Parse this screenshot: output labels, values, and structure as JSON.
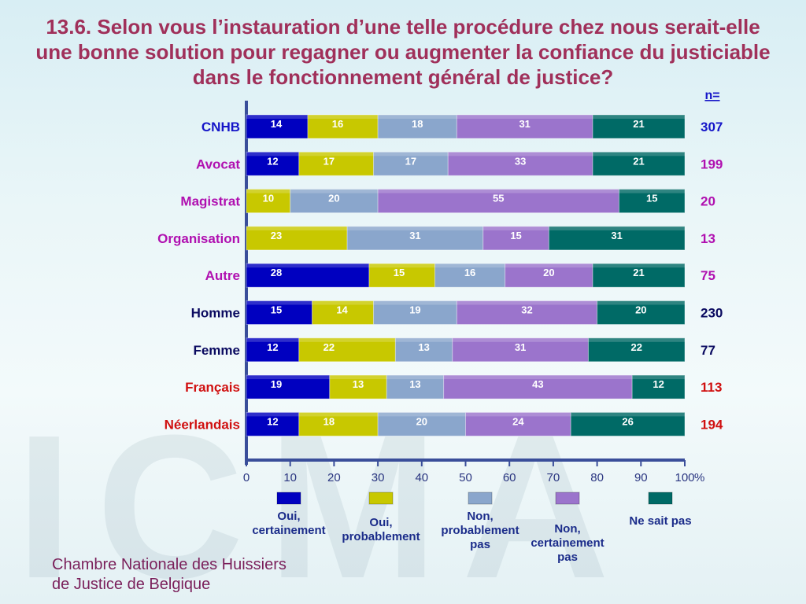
{
  "title": "13.6. Selon vous l’instauration d’une telle procédure chez nous serait-elle une bonne solution pour regagner ou augmenter la confiance du justiciable dans le fonctionnement général de justice?",
  "footer": {
    "line1": "Chambre Nationale des Huissiers",
    "line2": "de Justice de Belgique"
  },
  "watermark": "ICMA",
  "chart_data": {
    "type": "bar",
    "orientation": "horizontal",
    "stacked": true,
    "n_header": "n=",
    "xlim": [
      0,
      100
    ],
    "x_ticks": [
      0,
      10,
      20,
      30,
      40,
      50,
      60,
      70,
      80,
      90,
      100
    ],
    "x_unit": "%",
    "categories": [
      "CNHB",
      "Avocat",
      "Magistrat",
      "Organisation",
      "Autre",
      "Homme",
      "Femme",
      "Français",
      "Néerlandais"
    ],
    "category_colors": [
      "#1515c8",
      "#b010b0",
      "#b010b0",
      "#b010b0",
      "#b010b0",
      "#0a0a60",
      "#0a0a60",
      "#d01010",
      "#d01010"
    ],
    "n": [
      "307",
      "199",
      "20",
      "13",
      "75",
      "230",
      "77",
      "113",
      "194"
    ],
    "series": [
      {
        "name": "Oui, certainement",
        "color": "#0000c0",
        "values": [
          14,
          12,
          0,
          0,
          28,
          15,
          12,
          19,
          12
        ]
      },
      {
        "name": "Oui, probablement",
        "color": "#c8c800",
        "values": [
          16,
          17,
          10,
          23,
          15,
          14,
          22,
          13,
          18
        ]
      },
      {
        "name": "Non, probablement pas",
        "color": "#8aa6cc",
        "values": [
          18,
          17,
          20,
          31,
          16,
          19,
          13,
          13,
          20
        ]
      },
      {
        "name": "Non, certainement pas",
        "color": "#9b74cc",
        "values": [
          31,
          33,
          55,
          15,
          20,
          32,
          31,
          43,
          24
        ]
      },
      {
        "name": "Ne sait pas",
        "color": "#006a66",
        "values": [
          21,
          21,
          15,
          31,
          21,
          20,
          22,
          12,
          26
        ]
      }
    ],
    "legend": [
      {
        "lines": [
          "Oui,",
          "certainement"
        ]
      },
      {
        "lines": [
          "Oui,",
          "probablement"
        ]
      },
      {
        "lines": [
          "Non,",
          "probablement",
          "pas"
        ]
      },
      {
        "lines": [
          "Non,",
          "certainement",
          "pas"
        ]
      },
      {
        "lines": [
          "Ne sait pas"
        ]
      }
    ]
  }
}
